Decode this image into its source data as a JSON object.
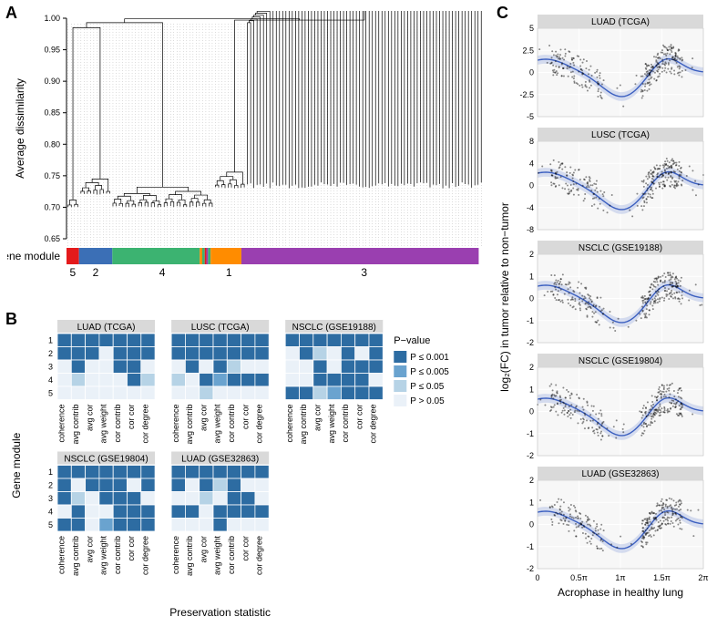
{
  "panelA": {
    "label": "A",
    "ylabel": "Average dissimilarity",
    "gene_module_label": "Gene module",
    "ylim": [
      0.65,
      1.0
    ],
    "ytick_step": 0.05,
    "module_colors": {
      "1": "#ff8c00",
      "2": "#3b6fb6",
      "3": "#9a3fb0",
      "4": "#3cb371",
      "5": "#e41a1c"
    },
    "module_order_strip": [
      5,
      2,
      4,
      1,
      3
    ],
    "module_widths": [
      0.03,
      0.08,
      0.24,
      0.08,
      0.57
    ],
    "branch_color": "#000000",
    "background_color": "#ffffff"
  },
  "panelB": {
    "label": "B",
    "xlabel": "Preservation statistic",
    "ylabel": "Gene module",
    "legend_title": "P−value",
    "legend_items": [
      "P ≤ 0.001",
      "P ≤ 0.005",
      "P ≤ 0.05",
      "P > 0.05"
    ],
    "legend_colors": [
      "#2d6ca2",
      "#6aa3cf",
      "#b6d3e6",
      "#eaf1f8"
    ],
    "stats": [
      "coherence",
      "avg contrib",
      "avg cor",
      "avg weight",
      "cor contrib",
      "cor cor",
      "cor degree"
    ],
    "modules": [
      1,
      2,
      3,
      4,
      5
    ],
    "datasets": [
      {
        "name": "LUAD (TCGA)",
        "grid": [
          [
            0,
            0,
            0,
            0,
            0,
            0,
            0
          ],
          [
            0,
            0,
            0,
            3,
            0,
            0,
            0
          ],
          [
            3,
            0,
            3,
            3,
            0,
            0,
            3
          ],
          [
            3,
            2,
            3,
            3,
            3,
            0,
            2
          ],
          [
            3,
            3,
            3,
            3,
            3,
            3,
            3
          ]
        ]
      },
      {
        "name": "LUSC (TCGA)",
        "grid": [
          [
            0,
            0,
            0,
            0,
            0,
            0,
            0
          ],
          [
            0,
            0,
            0,
            0,
            0,
            0,
            0
          ],
          [
            3,
            0,
            3,
            0,
            2,
            3,
            3
          ],
          [
            2,
            3,
            0,
            1,
            0,
            0,
            0
          ],
          [
            3,
            3,
            2,
            3,
            3,
            3,
            3
          ]
        ]
      },
      {
        "name": "NSCLC (GSE19188)",
        "grid": [
          [
            0,
            0,
            0,
            0,
            0,
            0,
            0
          ],
          [
            3,
            0,
            2,
            3,
            0,
            3,
            0
          ],
          [
            3,
            3,
            0,
            3,
            0,
            0,
            0
          ],
          [
            3,
            3,
            0,
            0,
            0,
            0,
            3
          ],
          [
            0,
            0,
            2,
            1,
            0,
            0,
            0
          ]
        ]
      },
      {
        "name": "NSCLC (GSE19804)",
        "grid": [
          [
            0,
            0,
            0,
            0,
            0,
            0,
            0
          ],
          [
            0,
            3,
            0,
            0,
            0,
            3,
            0
          ],
          [
            0,
            2,
            3,
            0,
            0,
            0,
            3
          ],
          [
            3,
            0,
            3,
            3,
            0,
            0,
            0
          ],
          [
            0,
            0,
            3,
            1,
            0,
            0,
            0
          ]
        ]
      },
      {
        "name": "LUAD (GSE32863)",
        "grid": [
          [
            0,
            0,
            0,
            0,
            0,
            0,
            0
          ],
          [
            0,
            3,
            0,
            2,
            0,
            3,
            3
          ],
          [
            3,
            3,
            2,
            3,
            0,
            0,
            3
          ],
          [
            0,
            0,
            3,
            0,
            0,
            0,
            0
          ],
          [
            3,
            3,
            3,
            0,
            3,
            3,
            3
          ]
        ]
      }
    ],
    "layout": [
      [
        0,
        1,
        2
      ],
      [
        3,
        4,
        null
      ]
    ],
    "cell_border": "#ffffff",
    "facet_strip_color": "#d9d9d9"
  },
  "panelC": {
    "label": "C",
    "ylabel": "log₂(FC) in tumor relative to non−tumor",
    "xlabel": "Acrophase in healthy lung",
    "xlim": [
      0,
      2
    ],
    "xtick_labels": [
      "0",
      "0.5π",
      "1π",
      "1.5π",
      "2π"
    ],
    "line_color": "#3b5fc0",
    "ribbon_color": "#b8c5e8",
    "point_color": "#000000",
    "point_alpha": 0.45,
    "background_color": "#ffffff",
    "grid_color": "#e9e9e9",
    "facet_strip_color": "#d9d9d9",
    "facets": [
      {
        "name": "LUAD (TCGA)",
        "ylim": [
          -5,
          5
        ],
        "yticks": [
          -5,
          -2.5,
          0,
          2.5,
          5
        ]
      },
      {
        "name": "LUSC (TCGA)",
        "ylim": [
          -8,
          8
        ],
        "yticks": [
          -8,
          -4,
          0,
          4,
          8
        ]
      },
      {
        "name": "NSCLC (GSE19188)",
        "ylim": [
          -2,
          2
        ],
        "yticks": [
          -2,
          -1,
          0,
          1,
          2
        ]
      },
      {
        "name": "NSCLC (GSE19804)",
        "ylim": [
          -2,
          2
        ],
        "yticks": [
          -2,
          -1,
          0,
          1,
          2
        ]
      },
      {
        "name": "LUAD (GSE32863)",
        "ylim": [
          -2,
          2
        ],
        "yticks": [
          -2,
          -1,
          0,
          1,
          2
        ]
      }
    ]
  }
}
